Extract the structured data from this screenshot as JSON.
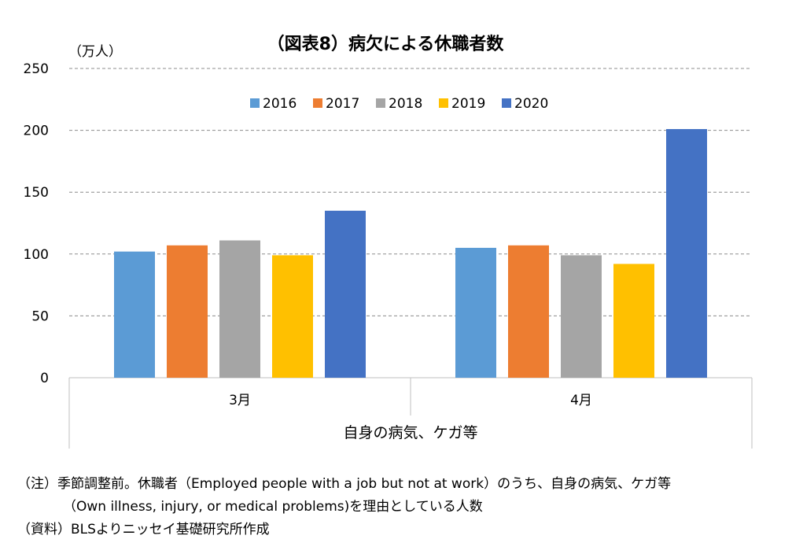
{
  "chart_data": {
    "type": "bar",
    "title": "（図表8）病欠による休職者数",
    "ylabel": "（万人）",
    "xlabel": "自身の病気、ケガ等",
    "categories": [
      "3月",
      "4月"
    ],
    "series": [
      {
        "name": "2016",
        "color": "#5B9BD5",
        "values": [
          102,
          105
        ]
      },
      {
        "name": "2017",
        "color": "#ED7D31",
        "values": [
          107,
          107
        ]
      },
      {
        "name": "2018",
        "color": "#A5A5A5",
        "values": [
          111,
          99
        ]
      },
      {
        "name": "2019",
        "color": "#FFC000",
        "values": [
          99,
          92
        ]
      },
      {
        "name": "2020",
        "color": "#4472C4",
        "values": [
          135,
          201
        ]
      }
    ],
    "ylim": [
      0,
      250
    ],
    "yticks": [
      0,
      50,
      100,
      150,
      200,
      250
    ],
    "grid": true,
    "legend": "top"
  },
  "notes": {
    "line1": "（注）季節調整前。休職者（Employed people with a job but not at work）のうち、自身の病気、ケガ等",
    "line2": "（Own illness, injury, or medical problems)を理由としている人数",
    "line3": "（資料）BLSよりニッセイ基礎研究所作成"
  }
}
